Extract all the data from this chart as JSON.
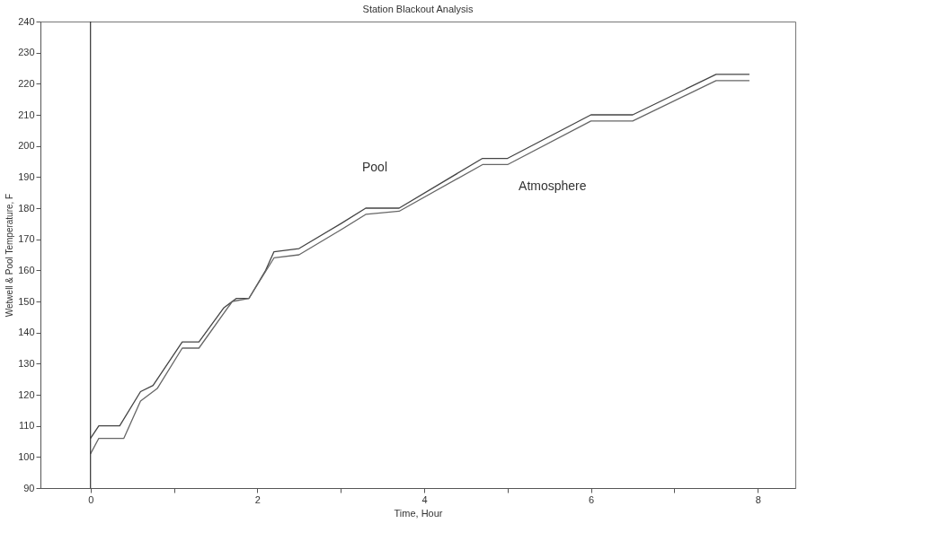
{
  "chart_data": {
    "type": "line",
    "title": "Station Blackout Analysis",
    "xlabel": "Time, Hour",
    "ylabel": "Wetwell & Pool Temperature, F",
    "xlim": [
      -0.6,
      8.45
    ],
    "ylim": [
      90,
      240
    ],
    "xticks": [
      0,
      {
        "value": 1,
        "label": null
      },
      2,
      {
        "value": 3,
        "label": null
      },
      4,
      {
        "value": 5,
        "label": null
      },
      6,
      {
        "value": 7,
        "label": null
      },
      8
    ],
    "yticks": [
      90,
      100,
      110,
      120,
      130,
      140,
      150,
      160,
      170,
      180,
      190,
      200,
      210,
      220,
      230,
      240
    ],
    "grid": false,
    "marker": "none",
    "line_style": "solid",
    "ref_lines": [
      {
        "axis": "x",
        "value": 0,
        "label": null,
        "color": "#333333"
      }
    ],
    "series": [
      {
        "name": "Pool",
        "color": "#444444",
        "x": [
          0,
          0.1,
          0.35,
          0.6,
          0.75,
          1.1,
          1.3,
          1.6,
          1.75,
          1.9,
          2.1,
          2.2,
          2.5,
          3.0,
          3.3,
          3.7,
          4.7,
          5.0,
          6.0,
          6.5,
          7.5,
          7.9
        ],
        "values": [
          106,
          110,
          110,
          121,
          123,
          137,
          137,
          148,
          151,
          151,
          160,
          166,
          167,
          175,
          180,
          180,
          196,
          196,
          210,
          210,
          223,
          223
        ]
      },
      {
        "name": "Atmosphere",
        "color": "#666666",
        "x": [
          0,
          0.1,
          0.4,
          0.6,
          0.8,
          1.1,
          1.3,
          1.7,
          1.9,
          2.2,
          2.5,
          3.0,
          3.3,
          3.7,
          4.7,
          5.0,
          6.0,
          6.5,
          7.5,
          7.9
        ],
        "values": [
          101,
          106,
          106,
          118,
          122,
          135,
          135,
          150,
          151,
          164,
          165,
          173,
          178,
          179,
          194,
          194,
          208,
          208,
          221,
          221
        ]
      }
    ]
  }
}
